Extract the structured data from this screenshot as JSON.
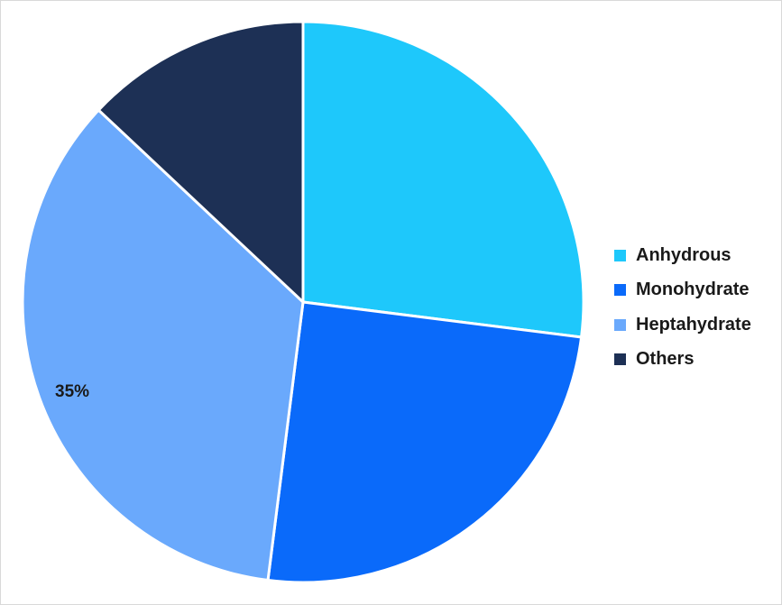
{
  "chart_data": {
    "type": "pie",
    "title": "",
    "categories": [
      "Anhydrous",
      "Monohydrate",
      "Heptahydrate",
      "Others"
    ],
    "values": [
      27,
      25,
      35,
      13
    ],
    "colors": [
      "#1ec8fb",
      "#0a6afa",
      "#6aa9fc",
      "#1d3055"
    ],
    "start_angle_deg": 0,
    "direction": "clockwise",
    "data_labels": [
      {
        "category": "Heptahydrate",
        "text": "35%"
      }
    ],
    "legend_position": "right"
  }
}
